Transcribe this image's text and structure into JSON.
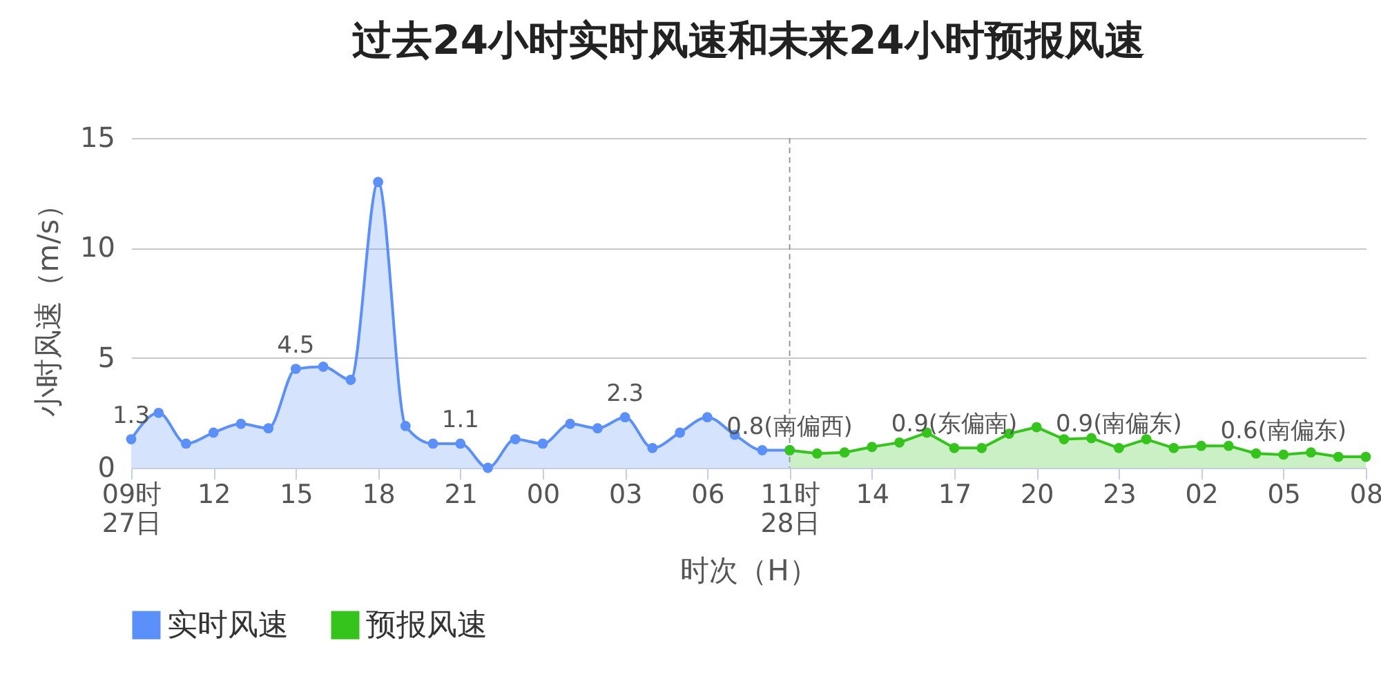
{
  "chart_data": {
    "type": "area",
    "title": "过去24小时实时风速和未来24小时预报风速",
    "xlabel": "时次（H）",
    "ylabel": "小时风速（m/s）",
    "categories": [
      "09时\n27日",
      null,
      null,
      "12",
      null,
      null,
      "15",
      null,
      null,
      "18",
      null,
      null,
      "21",
      null,
      null,
      "00",
      null,
      null,
      "03",
      null,
      null,
      "06",
      null,
      null,
      "11时\n28日",
      null,
      null,
      "14",
      null,
      null,
      "17",
      null,
      null,
      "20",
      null,
      null,
      "23",
      null,
      null,
      "02",
      null,
      null,
      "05",
      null,
      null,
      "08"
    ],
    "series": [
      {
        "name": "实时风速",
        "color": "#5b8ff9",
        "values": [
          1.3,
          2.5,
          1.1,
          1.6,
          2.0,
          1.8,
          4.5,
          4.6,
          4.0,
          13.0,
          1.9,
          1.1,
          1.1,
          0,
          1.3,
          1.1,
          2.0,
          1.8,
          2.3,
          0.9,
          1.6,
          2.3,
          1.5,
          0.8,
          0.8,
          null,
          null,
          null,
          null,
          null,
          null,
          null,
          null,
          null,
          null,
          null,
          null,
          null,
          null,
          null,
          null,
          null,
          null,
          null,
          null,
          null
        ],
        "value_labels": [
          "1.3",
          null,
          null,
          null,
          null,
          null,
          "4.5",
          null,
          null,
          null,
          null,
          null,
          "1.1",
          null,
          null,
          null,
          null,
          null,
          "2.3",
          null,
          null,
          null,
          null,
          null,
          "0.8(南偏西)",
          null,
          null,
          null,
          null,
          null,
          null,
          null,
          null,
          null,
          null,
          null,
          null,
          null,
          null,
          null,
          null,
          null,
          null,
          null,
          null,
          null
        ]
      },
      {
        "name": "预报风速",
        "color": "#35c41b",
        "values": [
          null,
          null,
          null,
          null,
          null,
          null,
          null,
          null,
          null,
          null,
          null,
          null,
          null,
          null,
          null,
          null,
          null,
          null,
          null,
          null,
          null,
          null,
          null,
          null,
          0.8,
          0.65,
          0.7,
          0.95,
          1.15,
          1.6,
          0.9,
          0.9,
          1.55,
          1.85,
          1.3,
          1.35,
          0.9,
          1.3,
          0.9,
          1.0,
          1.0,
          0.65,
          0.6,
          0.7,
          0.5,
          0.5
        ],
        "value_labels": [
          null,
          null,
          null,
          null,
          null,
          null,
          null,
          null,
          null,
          null,
          null,
          null,
          null,
          null,
          null,
          null,
          null,
          null,
          null,
          null,
          null,
          null,
          null,
          null,
          null,
          null,
          null,
          null,
          null,
          null,
          "0.9(东偏南)",
          null,
          null,
          null,
          null,
          null,
          "0.9(南偏东)",
          null,
          null,
          null,
          null,
          null,
          "0.6(南偏东)",
          null,
          null,
          null
        ]
      }
    ],
    "ylim": [
      0,
      15
    ],
    "yticks": [
      0,
      5,
      10,
      15
    ],
    "grid": "y",
    "legend": "bottom",
    "marker": "circle",
    "ref_lines": [
      {
        "axis": "x",
        "value": "11时\n28日",
        "color": "#999999",
        "line_style": "dashed"
      }
    ]
  }
}
